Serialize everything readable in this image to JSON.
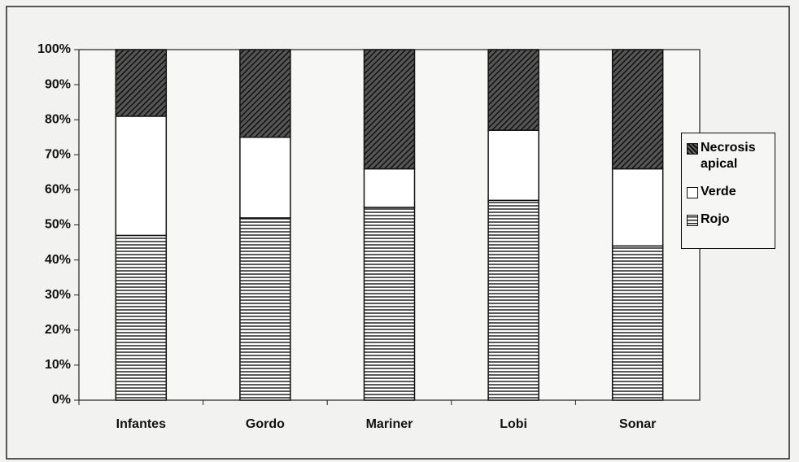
{
  "chart_data": {
    "type": "stacked-bar",
    "categories": [
      "Infantes",
      "Gordo",
      "Mariner",
      "Lobi",
      "Sonar"
    ],
    "series": [
      {
        "name": "Rojo",
        "color": "#222222",
        "hatch": "horizontal",
        "values": [
          47,
          52,
          55,
          57,
          44
        ]
      },
      {
        "name": "Verde",
        "color": "#ffffff",
        "hatch": "none",
        "values": [
          34,
          23,
          11,
          20,
          22
        ]
      },
      {
        "name": "Necrosis apical",
        "color": "#222222",
        "hatch": "diagonal",
        "values": [
          19,
          25,
          34,
          23,
          34
        ]
      }
    ],
    "ylim": [
      0,
      100
    ],
    "yticks": [
      {
        "value": 0,
        "label": "0%"
      },
      {
        "value": 10,
        "label": "10%"
      },
      {
        "value": 20,
        "label": "20%"
      },
      {
        "value": 30,
        "label": "30%"
      },
      {
        "value": 40,
        "label": "40%"
      },
      {
        "value": 50,
        "label": "50%"
      },
      {
        "value": 60,
        "label": "60%"
      },
      {
        "value": 70,
        "label": "70%"
      },
      {
        "value": 80,
        "label": "80%"
      },
      {
        "value": 90,
        "label": "90%"
      },
      {
        "value": 100,
        "label": "100%"
      }
    ],
    "legend": "right"
  }
}
